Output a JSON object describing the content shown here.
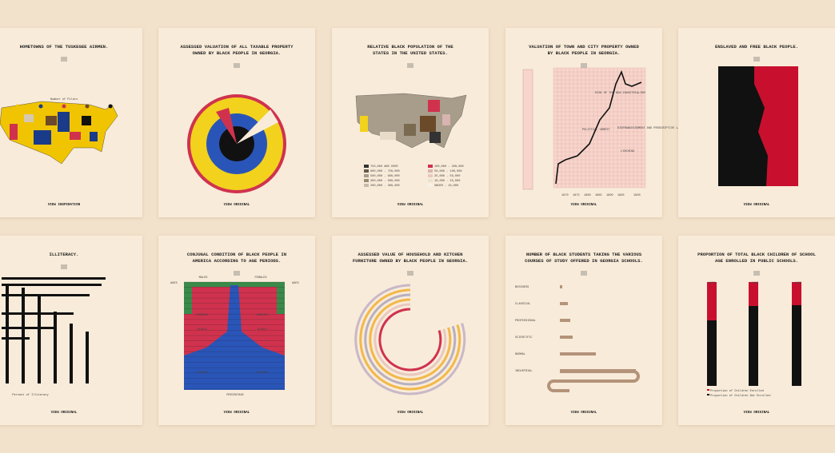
{
  "cards": [
    {
      "title": [
        "HOMETOWNS OF THE TUSKEGEE AIRMEN."
      ],
      "link": "VIEW INSPIRATION",
      "labels": [
        "Number of Pilots"
      ]
    },
    {
      "title": [
        "ASSESSED VALUATION OF ALL TAXABLE PROPERTY",
        "OWNED BY BLACK PEOPLE IN GEORGIA."
      ],
      "link": "VIEW ORIGINAL",
      "labels": []
    },
    {
      "title": [
        "RELATIVE BLACK POPULATION OF THE",
        "STATES IN THE UNITED STATES."
      ],
      "link": "VIEW ORIGINAL",
      "labels": [
        "750,000 AND OVER",
        "600,000 - 750,000",
        "500,000 - 600,000",
        "300,000 - 500,000",
        "200,000 - 300,000",
        "100,000 - 200,000",
        "50,000 - 100,000",
        "25,000 - 50,000",
        "10,000 - 25,000",
        "UNDER - 10,000"
      ]
    },
    {
      "title": [
        "VALUATION OF TOWN AND CITY PROPERTY OWNED",
        "BY BLACK PEOPLE IN GEORGIA."
      ],
      "link": "VIEW ORIGINAL",
      "labels": [
        "RISE OF THE NEW INDUSTRIALISM",
        "POLITICAL UNREST",
        "DISFRANCHISEMENT AND PROSCRIPTIVE LAWS",
        "LYNCHING",
        "1870",
        "1875",
        "1880",
        "1885",
        "1890",
        "1895",
        "1900"
      ]
    },
    {
      "title": [
        "ENSLAVED AND FREE BLACK PEOPLE."
      ],
      "link": "VIEW ORIGINAL",
      "labels": []
    },
    {
      "title": [
        "ILLITERACY."
      ],
      "link": "VIEW ORIGINAL",
      "labels": [
        "Percent of Illiteracy"
      ]
    },
    {
      "title": [
        "CONJUGAL CONDITION OF BLACK PEOPLE IN",
        "AMERICA ACCORDING TO AGE PERIODS."
      ],
      "link": "VIEW ORIGINAL",
      "labels": [
        "MALES",
        "FEMALES",
        "AGES",
        "AGES",
        "SINGLE",
        "SINGLE",
        "MARRIED",
        "MARRIED",
        "WIDOWED",
        "WIDOWED",
        "PERCENTAGE"
      ]
    },
    {
      "title": [
        "ASSESSED VALUE OF HOUSEHOLD AND KITCHEN",
        "FURNITURE OWNED BY BLACK PEOPLE IN GEORGIA."
      ],
      "link": "VIEW ORIGINAL",
      "labels": []
    },
    {
      "title": [
        "NUMBER OF BLACK STUDENTS TAKING THE VARIOUS",
        "COURSES OF STUDY OFFERED IN GEORGIA SCHOOLS."
      ],
      "link": "VIEW ORIGINAL",
      "labels": [
        "BUSINESS",
        "CLASSICAL",
        "PROFESSIONAL",
        "SCIENTIFIC",
        "NORMAL",
        "INDUSTRIAL"
      ]
    },
    {
      "title": [
        "PROPORTION OF TOTAL BLACK CHILDREN OF SCHOOL",
        "AGE ENROLLED IN PUBLIC SCHOOLS."
      ],
      "link": "VIEW ORIGINAL",
      "labels": [
        "1876",
        "1886",
        "1896",
        "Proportion of Children Enrolled",
        "Proportion of Children Not Enrolled"
      ]
    }
  ]
}
